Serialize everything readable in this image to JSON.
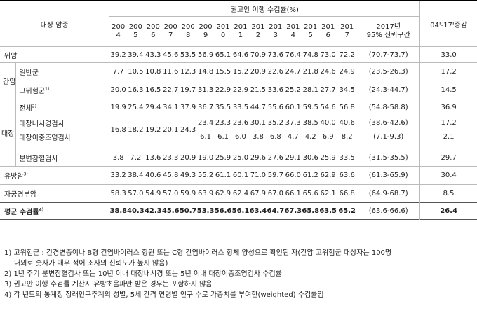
{
  "header": {
    "target_cancer": "대상 암종",
    "rate_title": "권고안 이행 수검률(%)",
    "years": [
      [
        "200",
        "4"
      ],
      [
        "200",
        "5"
      ],
      [
        "200",
        "6"
      ],
      [
        "200",
        "7"
      ],
      [
        "200",
        "8"
      ],
      [
        "200",
        "9"
      ],
      [
        "201",
        "0"
      ],
      [
        "201",
        "1"
      ],
      [
        "201",
        "2"
      ],
      [
        "201",
        "3"
      ],
      [
        "201",
        "4"
      ],
      [
        "201",
        "5"
      ],
      [
        "201",
        "6"
      ],
      [
        "201",
        "7"
      ]
    ],
    "ci_line1": "2017년",
    "ci_line2": "95% 신뢰구간",
    "change": "04'-17'증감"
  },
  "rows": {
    "stomach": {
      "label": "위암",
      "values": [
        "39.2",
        "39.4",
        "43.3",
        "45.6",
        "53.5",
        "56.9",
        "65.1",
        "64.6",
        "70.9",
        "73.6",
        "76.4",
        "74.8",
        "73.0",
        "72.2"
      ],
      "ci": "(70.7-73.7)",
      "change": "33.0"
    },
    "liver": {
      "label": "간암",
      "general": {
        "label": "일반군",
        "values": [
          "7.7",
          "10.5",
          "10.8",
          "11.6",
          "12.3",
          "14.8",
          "15.5",
          "15.2",
          "20.9",
          "22.6",
          "24.7",
          "21.8",
          "24.6",
          "24.9"
        ],
        "ci": "(23.5-26.3)",
        "change": "17.2"
      },
      "high": {
        "label": "고위험군",
        "sup": "1)",
        "values": [
          "20.0",
          "16.3",
          "16.5",
          "22.7",
          "19.7",
          "31.3",
          "22.9",
          "22.9",
          "21.5",
          "33.6",
          "25.2",
          "28.1",
          "27.7",
          "34.5"
        ],
        "ci": "(24.3-44.7)",
        "change": "14.5"
      }
    },
    "colon": {
      "label": "대장암",
      "total": {
        "label": "전체",
        "sup": "2)",
        "values": [
          "19.9",
          "25.4",
          "29.4",
          "34.1",
          "37.9",
          "36.7",
          "35.5",
          "33.5",
          "44.7",
          "55.6",
          "60.1",
          "59.5",
          "54.6",
          "56.8"
        ],
        "ci": "(54.8-58.8)",
        "change": "36.9"
      },
      "combined": {
        "values": [
          "16.8",
          "18.2",
          "19.2",
          "20.1",
          "24.3"
        ]
      },
      "colonoscopy": {
        "label": "대장내시경검사",
        "values": [
          "23.4",
          "23.3",
          "23.6",
          "30.1",
          "35.2",
          "37.3",
          "38.5",
          "40.0",
          "40.6"
        ],
        "ci": "(38.6-42.6)",
        "change": "17.2"
      },
      "double_contrast": {
        "label": "대장이중조영검사",
        "values": [
          "6.1",
          "6.1",
          "6.0",
          "3.8",
          "6.8",
          "4.7",
          "4.2",
          "6.9",
          "8.2"
        ],
        "ci": "(7.1-9.3)",
        "change": "2.1"
      },
      "fobt": {
        "label": "분변잠혈검사",
        "values": [
          "3.8",
          "7.2",
          "13.6",
          "23.3",
          "20.9",
          "19.0",
          "25.9",
          "25.0",
          "29.6",
          "27.6",
          "29.1",
          "30.6",
          "25.9",
          "33.5"
        ],
        "ci": "(31.5-35.5)",
        "change": "29.7"
      }
    },
    "breast": {
      "label": "유방암",
      "sup": "3)",
      "values": [
        "33.2",
        "38.4",
        "40.6",
        "45.8",
        "49.3",
        "55.2",
        "61.1",
        "60.1",
        "71.0",
        "59.7",
        "66.0",
        "61.2",
        "62.9",
        "63.6"
      ],
      "ci": "(61.3-65.9)",
      "change": "30.4"
    },
    "cervical": {
      "label": "자궁경부암",
      "values": [
        "58.3",
        "57.0",
        "54.9",
        "57.0",
        "59.9",
        "63.9",
        "62.9",
        "62.4",
        "67.9",
        "67.0",
        "66.1",
        "65.6",
        "62.1",
        "66.8"
      ],
      "ci": "(64.9-68.7)",
      "change": "8.5"
    },
    "average": {
      "label": "평균 수검률",
      "sup": "4)",
      "values": [
        "38.8",
        "40.3",
        "42.3",
        "45.6",
        "50.7",
        "53.3",
        "56.6",
        "56.1",
        "63.4",
        "64.7",
        "67.3",
        "65.8",
        "63.5",
        "65.2"
      ],
      "ci": "(63.6-66.6)",
      "change": "26.4"
    }
  },
  "notes": {
    "n1a": "1) 고위험군 : 간경변증이나 B형 간염바이러스 항원 또는 C형 간염바이러스 항체 양성으로 확인된 자(간암 고위험군 대상자는 100명",
    "n1b": "내외로 숫자가 매우 적어 조사의 신뢰도가 높지 않음)",
    "n2": "2) 1년 주기 분변잠혈검사 또는 10년 이내 대장내시경 또는 5년 이내 대장이중조영검사 수검률",
    "n3": "3) 권고안 이행 수검률 계산시 유방초음파만 받은 경우는 포함하지 않음",
    "n4": "4) 각 년도의 통계청 장래인구추계의 성별, 5세 간격 연령별 인구 수로 가중치를 부여한(weighted) 수검률임"
  }
}
